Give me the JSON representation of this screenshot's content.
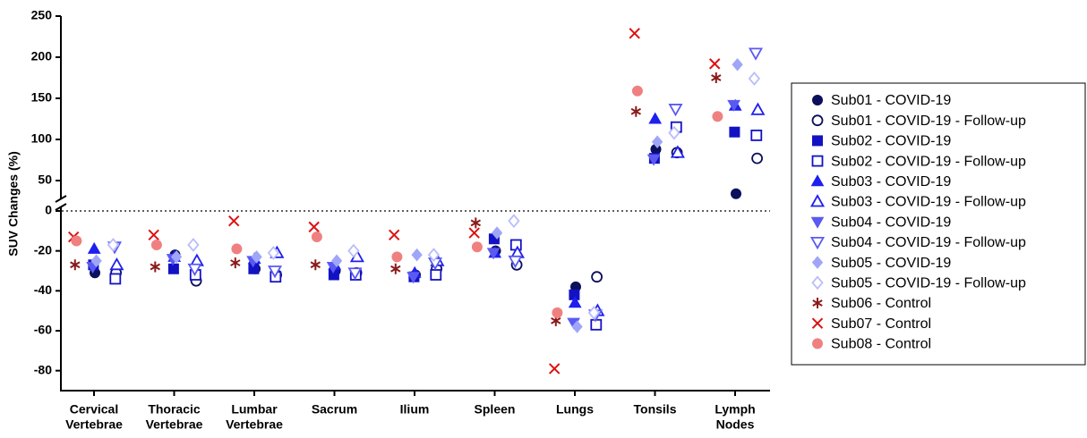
{
  "chart_data": {
    "type": "scatter",
    "y_label": "SUV Changes (%)",
    "categories": [
      [
        "Cervical",
        "Vertebrae"
      ],
      [
        "Thoracic",
        "Vertebrae"
      ],
      [
        "Lumbar",
        "Vertebrae"
      ],
      [
        "Sacrum"
      ],
      [
        "Ilium"
      ],
      [
        "Spleen"
      ],
      [
        "Lungs"
      ],
      [
        "Tonsils"
      ],
      [
        "Lymph",
        "Nodes"
      ]
    ],
    "y_segments": [
      {
        "ylim": [
          -90,
          0
        ],
        "yticks": [
          -80,
          -60,
          -40,
          -20,
          0
        ]
      },
      {
        "ylim": [
          25,
          250
        ],
        "yticks": [
          50,
          100,
          150,
          200,
          250
        ]
      }
    ],
    "zero_line": true,
    "legend": "right",
    "series": [
      {
        "name": "Sub01 - COVID-19",
        "color": "#0b0f5c",
        "marker": "circle",
        "group": "covid",
        "values": [
          -31,
          -22,
          -29,
          -30,
          -32,
          -20,
          -38,
          88,
          34
        ]
      },
      {
        "name": "Sub01 - COVID-19 - Follow-up",
        "color": "#0b0f5c",
        "marker": "circle-open",
        "group": "follow-up",
        "values": [
          -31,
          -35,
          -32,
          -31,
          -29,
          -27,
          -33,
          84,
          77
        ]
      },
      {
        "name": "Sub02 - COVID-19",
        "color": "#1212c4",
        "marker": "square",
        "group": "covid",
        "values": [
          -27,
          -29,
          -29,
          -32,
          -33,
          -14,
          -42,
          77,
          109
        ]
      },
      {
        "name": "Sub02 - COVID-19 - Follow-up",
        "color": "#1212c4",
        "marker": "square-open",
        "group": "follow-up",
        "values": [
          -34,
          -32,
          -33,
          -32,
          -32,
          -17,
          -57,
          115,
          105
        ]
      },
      {
        "name": "Sub03 - COVID-19",
        "color": "#1f1fee",
        "marker": "triangle",
        "group": "covid",
        "values": [
          -19,
          -23,
          -24,
          -27,
          -31,
          -21,
          -46,
          125,
          141
        ]
      },
      {
        "name": "Sub03 - COVID-19 - Follow-up",
        "color": "#1f1fee",
        "marker": "triangle-open",
        "group": "follow-up",
        "values": [
          -27,
          -25,
          -21,
          -23,
          -25,
          -21,
          -50,
          84,
          136
        ]
      },
      {
        "name": "Sub04 - COVID-19",
        "color": "#5a5af2",
        "marker": "triangle-down",
        "group": "covid",
        "values": [
          -28,
          -24,
          -25,
          -28,
          -33,
          -21,
          -56,
          76,
          142
        ]
      },
      {
        "name": "Sub04 - COVID-19 - Follow-up",
        "color": "#5a5af2",
        "marker": "triangle-down-open",
        "group": "follow-up",
        "values": [
          -18,
          -29,
          -30,
          -31,
          -26,
          -25,
          -52,
          137,
          205
        ]
      },
      {
        "name": "Sub05 - COVID-19",
        "color": "#9fa6f8",
        "marker": "diamond",
        "group": "covid",
        "values": [
          -25,
          -23,
          -23,
          -25,
          -22,
          -11,
          -58,
          97,
          191
        ]
      },
      {
        "name": "Sub05 - COVID-19 - Follow-up",
        "color": "#b9bdfa",
        "marker": "diamond-open",
        "group": "follow-up",
        "values": [
          -17,
          -17,
          -21,
          -20,
          -22,
          -5,
          -51,
          108,
          174
        ]
      },
      {
        "name": "Sub06 - Control",
        "color": "#8b1a1a",
        "marker": "asterisk",
        "group": "control",
        "values": [
          -27,
          -28,
          -26,
          -27,
          -29,
          -6,
          -55,
          134,
          175
        ]
      },
      {
        "name": "Sub07 - Control",
        "color": "#dd1111",
        "marker": "x",
        "group": "control",
        "values": [
          -13,
          -12,
          -5,
          -8,
          -12,
          -11,
          -79,
          229,
          192
        ]
      },
      {
        "name": "Sub08 - Control",
        "color": "#f08080",
        "marker": "circle",
        "group": "control",
        "values": [
          -15,
          -17,
          -19,
          -13,
          -23,
          -18,
          -51,
          159,
          128
        ]
      }
    ]
  }
}
